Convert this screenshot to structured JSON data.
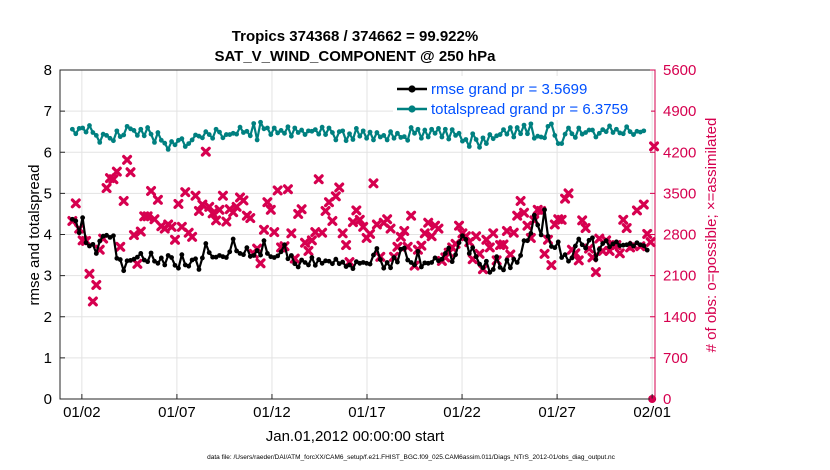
{
  "chart_data": {
    "type": "line",
    "title": "Tropics 374368 / 374662 = 99.922%",
    "subtitle": "SAT_V_WIND_COMPONENT @ 250 hPa",
    "xlabel": "Jan.01,2012 00:00:00 start",
    "ylabel_left": "rmse and totalspread",
    "ylabel_right": "# of obs: o=possible; ×=assimilated",
    "footnote": "data file: /Users/raeder/DAI/ATM_forcXX/CAM6_setup/f.e21.FHIST_BGC.f09_025.CAM6assim.011/Diags_NTrS_2012-01/obs_diag_output.nc",
    "xlim": [
      0.6,
      31.9
    ],
    "ylim_left": [
      0,
      8
    ],
    "ylim_right": [
      0,
      5600
    ],
    "x_tick_values": [
      1.75,
      6.75,
      11.75,
      16.75,
      21.75,
      26.75,
      31.75
    ],
    "x_tick_labels": [
      "01/02",
      "01/07",
      "01/12",
      "01/17",
      "01/22",
      "01/27",
      "02/01"
    ],
    "y_left_ticks": [
      "0",
      "1",
      "2",
      "3",
      "4",
      "5",
      "6",
      "7",
      "8"
    ],
    "y_right_ticks": [
      "0",
      "700",
      "1400",
      "2100",
      "2800",
      "3500",
      "4200",
      "4900",
      "5600"
    ],
    "series": [
      {
        "name": "rmse",
        "legend": "rmse grand pr = 3.5699",
        "color": "#000000",
        "axis": "left",
        "values": [
          4.37,
          4.33,
          4.04,
          4.41,
          3.8,
          3.72,
          3.76,
          3.54,
          3.84,
          3.96,
          3.98,
          3.93,
          3.97,
          3.42,
          3.39,
          3.12,
          3.36,
          3.37,
          3.4,
          3.45,
          3.54,
          3.38,
          3.34,
          3.55,
          3.35,
          3.3,
          3.43,
          3.26,
          3.49,
          3.44,
          3.25,
          3.18,
          3.51,
          3.26,
          3.23,
          3.38,
          3.41,
          3.15,
          3.43,
          3.78,
          3.56,
          3.45,
          3.45,
          3.49,
          3.46,
          3.44,
          3.58,
          3.89,
          3.6,
          3.54,
          3.51,
          3.68,
          3.47,
          3.49,
          3.61,
          3.5,
          3.85,
          3.54,
          3.46,
          3.44,
          3.48,
          3.58,
          3.75,
          3.41,
          3.49,
          3.29,
          3.21,
          3.38,
          3.32,
          3.26,
          3.44,
          3.25,
          3.39,
          3.3,
          3.36,
          3.35,
          3.29,
          3.4,
          3.29,
          3.33,
          3.22,
          3.26,
          3.17,
          3.34,
          3.3,
          3.32,
          3.3,
          3.28,
          3.5,
          3.66,
          3.39,
          3.18,
          3.32,
          3.19,
          3.44,
          3.33,
          3.64,
          3.67,
          3.38,
          3.32,
          3.26,
          3.59,
          3.21,
          3.31,
          3.3,
          3.32,
          3.43,
          3.36,
          3.4,
          3.54,
          3.67,
          3.34,
          3.51,
          3.8,
          3.97,
          3.88,
          3.54,
          3.68,
          3.46,
          3.28,
          3.19,
          3.35,
          3.08,
          3.15,
          3.46,
          3.2,
          3.14,
          3.38,
          3.19,
          3.4,
          3.32,
          3.49,
          3.85,
          3.85,
          4.03,
          4.47,
          4.23,
          3.99,
          4.6,
          3.96,
          3.71,
          3.68,
          3.82,
          3.44,
          3.51,
          3.35,
          3.43,
          3.72,
          3.89,
          3.75,
          3.67,
          3.86,
          3.92,
          3.39,
          3.64,
          3.78,
          3.85,
          3.7,
          3.77,
          3.82,
          3.73,
          3.74,
          3.75,
          3.78,
          3.72,
          3.8,
          3.75,
          3.73,
          3.62
        ]
      },
      {
        "name": "totalspread",
        "legend": "totalspread grand pr = 6.3759",
        "color": "#008080",
        "axis": "left",
        "values": [
          6.56,
          6.45,
          6.58,
          6.59,
          6.49,
          6.65,
          6.48,
          6.41,
          6.24,
          6.44,
          6.41,
          6.34,
          6.28,
          6.52,
          6.38,
          6.42,
          6.63,
          6.57,
          6.53,
          6.41,
          6.56,
          6.4,
          6.6,
          6.44,
          6.24,
          6.48,
          6.29,
          6.22,
          6.07,
          6.26,
          6.18,
          6.29,
          6.33,
          6.14,
          6.21,
          6.3,
          6.42,
          6.39,
          6.35,
          6.5,
          6.43,
          6.34,
          6.56,
          6.49,
          6.35,
          6.43,
          6.43,
          6.46,
          6.44,
          6.61,
          6.48,
          6.51,
          6.4,
          6.7,
          6.3,
          6.73,
          6.57,
          6.59,
          6.43,
          6.59,
          6.47,
          6.53,
          6.46,
          6.62,
          6.39,
          6.59,
          6.48,
          6.54,
          6.43,
          6.52,
          6.51,
          6.55,
          6.44,
          6.61,
          6.43,
          6.59,
          6.48,
          6.3,
          6.5,
          6.52,
          6.28,
          6.45,
          6.31,
          6.58,
          6.39,
          6.52,
          6.34,
          6.49,
          6.3,
          6.48,
          6.37,
          6.41,
          6.3,
          6.5,
          6.34,
          6.46,
          6.36,
          6.38,
          6.29,
          6.6,
          6.46,
          6.56,
          6.34,
          6.54,
          6.37,
          6.56,
          6.46,
          6.58,
          6.37,
          6.56,
          6.32,
          6.55,
          6.41,
          6.46,
          6.27,
          6.31,
          6.14,
          6.45,
          6.31,
          6.12,
          6.35,
          6.21,
          6.43,
          6.33,
          6.4,
          6.43,
          6.55,
          6.44,
          6.6,
          6.37,
          6.6,
          6.45,
          6.66,
          6.45,
          6.69,
          6.34,
          6.39,
          6.37,
          6.35,
          6.63,
          6.69,
          6.41,
          6.21,
          6.21,
          6.44,
          6.59,
          6.45,
          6.36,
          6.59,
          6.44,
          6.48,
          6.54,
          6.54,
          6.37,
          6.46,
          6.55,
          6.5,
          6.64,
          6.48,
          6.56,
          6.47,
          6.45,
          6.62,
          6.5,
          6.43,
          6.51,
          6.49,
          6.52
        ]
      },
      {
        "name": "possible",
        "marker": "o",
        "color": "#d6004f",
        "axis": "right",
        "values": [
          0
        ]
      },
      {
        "name": "assimilated",
        "marker": "x",
        "color": "#d6004f",
        "axis": "right",
        "values": [
          3030,
          3330,
          2900,
          2700,
          2690,
          2130,
          1660,
          1940,
          2540,
          2730,
          3590,
          3760,
          3740,
          3870,
          2590,
          3370,
          4070,
          3860,
          2790,
          2300,
          2850,
          3110,
          3110,
          3540,
          3060,
          3390,
          2940,
          2900,
          2970,
          2930,
          2710,
          3320,
          2930,
          3520,
          2830,
          2760,
          3460,
          3200,
          3310,
          4210,
          3270,
          3160,
          3040,
          3220,
          3460,
          3020,
          3230,
          3180,
          3270,
          3430,
          3380,
          3120,
          3080,
          2470,
          2560,
          2310,
          2880,
          3350,
          3220,
          2840,
          3550,
          2580,
          2600,
          3570,
          2820,
          2390,
          3150,
          3230,
          2660,
          2520,
          2700,
          2840,
          3740,
          2830,
          3200,
          3350,
          3030,
          3450,
          3600,
          2820,
          2620,
          2330,
          3010,
          3210,
          3050,
          2930,
          2740,
          2810,
          3670,
          2970,
          2420,
          3000,
          3060,
          2900,
          2420,
          2590,
          2760,
          2860,
          2590,
          3120,
          2270,
          2540,
          2610,
          2820,
          3000,
          2770,
          2950,
          2900,
          2350,
          2410,
          2490,
          2580,
          2640,
          2950,
          2820,
          2770,
          2670,
          2380,
          2770,
          2470,
          2210,
          2710,
          2580,
          2820,
          2360,
          2620,
          2630,
          2860,
          2460,
          2830,
          3120,
          3370,
          3170,
          2950,
          2740,
          3040,
          3220,
          3200,
          2470,
          2710,
          2280,
          2970,
          3060,
          3050,
          3410,
          3500,
          2540,
          2480,
          2360,
          3040,
          2910,
          2560,
          2410,
          2160,
          2730,
          2520,
          2700,
          2520,
          2630,
          2620,
          2480,
          3050,
          2910,
          2580,
          2610,
          3210,
          2600,
          3310,
          2810,
          2670,
          4300
        ]
      }
    ]
  }
}
